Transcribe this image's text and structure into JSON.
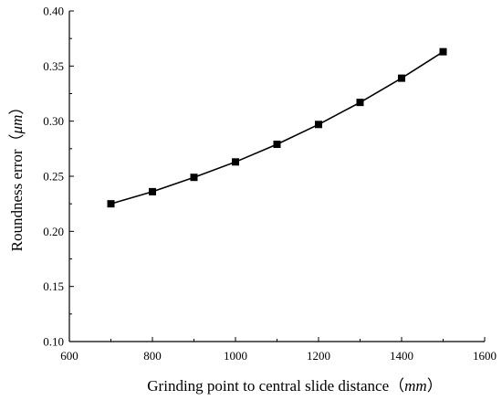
{
  "chart_data": {
    "type": "line",
    "title": "",
    "xlabel": "Grinding point to central slide distance",
    "xlabel_open": "（",
    "xlabel_unit": "mm",
    "xlabel_close": "）",
    "ylabel": "Roundness error",
    "ylabel_open": "（",
    "ylabel_unit": "μm",
    "ylabel_close": "）",
    "xlim": [
      600,
      1600
    ],
    "ylim": [
      0.1,
      0.4
    ],
    "x_ticks": [
      "600",
      "800",
      "1000",
      "1200",
      "1400",
      "1600"
    ],
    "y_ticks": [
      "0.10",
      "0.15",
      "0.20",
      "0.25",
      "0.30",
      "0.35",
      "0.40"
    ],
    "grid": false,
    "marker": "square",
    "line_color": "#000000",
    "series": [
      {
        "x": [
          700,
          800,
          900,
          1000,
          1100,
          1200,
          1300,
          1400,
          1500
        ],
        "values": [
          0.225,
          0.236,
          0.249,
          0.263,
          0.279,
          0.297,
          0.317,
          0.339,
          0.363
        ]
      }
    ]
  }
}
